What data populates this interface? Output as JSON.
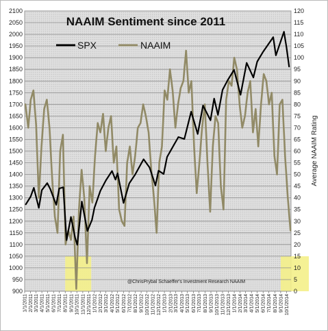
{
  "chart_data": {
    "type": "line",
    "title": "NAAIM Sentiment since 2011",
    "y2label": "Average NAAIM Rating",
    "ylim": [
      900,
      2100
    ],
    "y2lim": [
      0,
      120
    ],
    "yticks": [
      900,
      950,
      1000,
      1050,
      1100,
      1150,
      1200,
      1250,
      1300,
      1350,
      1400,
      1450,
      1500,
      1550,
      1600,
      1650,
      1700,
      1750,
      1800,
      1850,
      1900,
      1950,
      2000,
      2050,
      2100
    ],
    "y2ticks": [
      0,
      5,
      10,
      15,
      20,
      25,
      30,
      35,
      40,
      45,
      50,
      55,
      60,
      65,
      70,
      75,
      80,
      85,
      90,
      95,
      100,
      105,
      110,
      115,
      120
    ],
    "xticks": [
      "1/1/2011",
      "2/1/2011",
      "3/1/2011",
      "4/1/2011",
      "5/1/2011",
      "6/1/2011",
      "7/1/2011",
      "8/1/2011",
      "9/1/2011",
      "10/1/2011",
      "11/1/2011",
      "12/1/2011",
      "1/1/2012",
      "2/1/2012",
      "3/1/2012",
      "4/1/2012",
      "5/1/2012",
      "6/1/2012",
      "7/1/2012",
      "8/1/2012",
      "9/1/2012",
      "10/1/2012",
      "11/1/2012",
      "12/1/2012",
      "1/1/2013",
      "2/1/2013",
      "3/1/2013",
      "4/1/2013",
      "5/1/2013",
      "6/1/2013",
      "7/1/2013",
      "8/1/2013",
      "9/1/2013",
      "10/1/2013",
      "11/1/2013",
      "12/1/2013",
      "1/1/2014",
      "2/1/2014",
      "3/1/2014",
      "4/1/2014",
      "5/1/2014",
      "6/1/2014",
      "7/1/2014",
      "8/1/2014",
      "9/1/2014",
      "10/1/2014"
    ],
    "highlights": [
      {
        "x_start": "8/1/2011",
        "x_end": "12/15/2011",
        "y2_start": 0,
        "y2_end": 15
      },
      {
        "x_start": "9/1/2014",
        "x_end": "10/31/2014",
        "y2_start": 0,
        "y2_end": 15
      }
    ],
    "annotation": "@ChrisPrybal   Schaeffer's Investment Research      NAAIM",
    "legend_placement": "top-left",
    "grid": "horizontal",
    "series": [
      {
        "name": "SPX",
        "axis": "left",
        "color": "#000000",
        "points": [
          [
            "1/7/2011",
            1272
          ],
          [
            "2/1/2011",
            1305
          ],
          [
            "2/18/2011",
            1343
          ],
          [
            "3/16/2011",
            1257
          ],
          [
            "4/1/2011",
            1333
          ],
          [
            "4/29/2011",
            1363
          ],
          [
            "5/15/2011",
            1338
          ],
          [
            "6/15/2011",
            1270
          ],
          [
            "7/1/2011",
            1340
          ],
          [
            "7/22/2011",
            1345
          ],
          [
            "8/8/2011",
            1119
          ],
          [
            "8/31/2011",
            1218
          ],
          [
            "9/22/2011",
            1129
          ],
          [
            "10/3/2011",
            1099
          ],
          [
            "10/27/2011",
            1284
          ],
          [
            "11/25/2011",
            1158
          ],
          [
            "12/19/2011",
            1205
          ],
          [
            "1/1/2012",
            1257
          ],
          [
            "2/1/2012",
            1330
          ],
          [
            "3/1/2012",
            1375
          ],
          [
            "4/2/2012",
            1415
          ],
          [
            "4/20/2012",
            1378
          ],
          [
            "5/1/2012",
            1405
          ],
          [
            "6/1/2012",
            1278
          ],
          [
            "7/1/2012",
            1362
          ],
          [
            "8/1/2012",
            1400
          ],
          [
            "9/14/2012",
            1465
          ],
          [
            "10/15/2012",
            1430
          ],
          [
            "11/15/2012",
            1353
          ],
          [
            "12/1/2012",
            1416
          ],
          [
            "12/28/2012",
            1402
          ],
          [
            "1/15/2013",
            1475
          ],
          [
            "2/15/2013",
            1520
          ],
          [
            "3/15/2013",
            1560
          ],
          [
            "4/15/2013",
            1552
          ],
          [
            "5/21/2013",
            1669
          ],
          [
            "6/24/2013",
            1573
          ],
          [
            "7/22/2013",
            1695
          ],
          [
            "8/30/2013",
            1632
          ],
          [
            "9/18/2013",
            1725
          ],
          [
            "10/8/2013",
            1655
          ],
          [
            "11/1/2013",
            1762
          ],
          [
            "11/29/2013",
            1805
          ],
          [
            "12/31/2013",
            1848
          ],
          [
            "2/3/2014",
            1741
          ],
          [
            "3/7/2014",
            1878
          ],
          [
            "4/11/2014",
            1815
          ],
          [
            "5/1/2014",
            1883
          ],
          [
            "6/1/2014",
            1925
          ],
          [
            "7/24/2014",
            1988
          ],
          [
            "8/7/2014",
            1910
          ],
          [
            "9/18/2014",
            2011
          ],
          [
            "10/1/2014",
            1946
          ],
          [
            "10/15/2014",
            1862
          ]
        ]
      },
      {
        "name": "NAAIM",
        "axis": "right",
        "color": "#918a66",
        "points": [
          [
            "1/5/2011",
            80
          ],
          [
            "1/20/2011",
            70
          ],
          [
            "2/2/2011",
            82
          ],
          [
            "2/16/2011",
            86
          ],
          [
            "3/2/2011",
            71
          ],
          [
            "3/16/2011",
            40
          ],
          [
            "3/30/2011",
            62
          ],
          [
            "4/13/2011",
            78
          ],
          [
            "4/27/2011",
            82
          ],
          [
            "5/11/2011",
            70
          ],
          [
            "5/25/2011",
            48
          ],
          [
            "6/8/2011",
            32
          ],
          [
            "6/22/2011",
            25
          ],
          [
            "7/6/2011",
            60
          ],
          [
            "7/20/2011",
            67
          ],
          [
            "8/3/2011",
            20
          ],
          [
            "8/17/2011",
            26
          ],
          [
            "8/31/2011",
            22
          ],
          [
            "9/14/2011",
            32
          ],
          [
            "9/28/2011",
            1
          ],
          [
            "10/12/2011",
            35
          ],
          [
            "10/26/2011",
            52
          ],
          [
            "11/9/2011",
            40
          ],
          [
            "11/23/2011",
            12
          ],
          [
            "12/7/2011",
            45
          ],
          [
            "12/21/2011",
            38
          ],
          [
            "1/4/2012",
            58
          ],
          [
            "1/18/2012",
            72
          ],
          [
            "2/1/2012",
            68
          ],
          [
            "2/15/2012",
            76
          ],
          [
            "2/29/2012",
            60
          ],
          [
            "3/14/2012",
            70
          ],
          [
            "3/28/2012",
            75
          ],
          [
            "4/11/2012",
            55
          ],
          [
            "4/25/2012",
            62
          ],
          [
            "5/9/2012",
            35
          ],
          [
            "5/23/2012",
            30
          ],
          [
            "6/6/2012",
            28
          ],
          [
            "6/20/2012",
            55
          ],
          [
            "7/4/2012",
            62
          ],
          [
            "7/18/2012",
            50
          ],
          [
            "8/1/2012",
            58
          ],
          [
            "8/15/2012",
            70
          ],
          [
            "8/29/2012",
            72
          ],
          [
            "9/12/2012",
            80
          ],
          [
            "9/26/2012",
            75
          ],
          [
            "10/10/2012",
            68
          ],
          [
            "10/24/2012",
            52
          ],
          [
            "11/7/2012",
            40
          ],
          [
            "11/21/2012",
            25
          ],
          [
            "12/5/2012",
            55
          ],
          [
            "12/19/2012",
            62
          ],
          [
            "1/2/2013",
            86
          ],
          [
            "1/16/2013",
            82
          ],
          [
            "1/30/2013",
            95
          ],
          [
            "2/13/2013",
            86
          ],
          [
            "2/27/2013",
            70
          ],
          [
            "3/13/2013",
            80
          ],
          [
            "3/27/2013",
            87
          ],
          [
            "4/10/2013",
            90
          ],
          [
            "4/24/2013",
            103
          ],
          [
            "5/8/2013",
            85
          ],
          [
            "5/22/2013",
            90
          ],
          [
            "6/5/2013",
            62
          ],
          [
            "6/19/2013",
            42
          ],
          [
            "7/3/2013",
            55
          ],
          [
            "7/17/2013",
            70
          ],
          [
            "7/31/2013",
            80
          ],
          [
            "8/14/2013",
            55
          ],
          [
            "8/28/2013",
            34
          ],
          [
            "9/11/2013",
            62
          ],
          [
            "9/25/2013",
            75
          ],
          [
            "10/9/2013",
            72
          ],
          [
            "10/23/2013",
            45
          ],
          [
            "11/6/2013",
            35
          ],
          [
            "11/20/2013",
            82
          ],
          [
            "12/4/2013",
            90
          ],
          [
            "12/18/2013",
            88
          ],
          [
            "1/1/2014",
            100
          ],
          [
            "1/15/2014",
            95
          ],
          [
            "1/29/2014",
            80
          ],
          [
            "2/12/2014",
            70
          ],
          [
            "2/26/2014",
            75
          ],
          [
            "3/12/2014",
            85
          ],
          [
            "3/26/2014",
            90
          ],
          [
            "4/9/2014",
            68
          ],
          [
            "4/23/2014",
            78
          ],
          [
            "5/7/2014",
            62
          ],
          [
            "5/21/2014",
            80
          ],
          [
            "6/4/2014",
            93
          ],
          [
            "6/18/2014",
            90
          ],
          [
            "7/2/2014",
            80
          ],
          [
            "7/16/2014",
            85
          ],
          [
            "7/30/2014",
            58
          ],
          [
            "8/13/2014",
            50
          ],
          [
            "8/27/2014",
            80
          ],
          [
            "9/10/2014",
            82
          ],
          [
            "9/24/2014",
            58
          ],
          [
            "10/8/2014",
            40
          ],
          [
            "10/22/2014",
            26
          ]
        ]
      }
    ]
  }
}
